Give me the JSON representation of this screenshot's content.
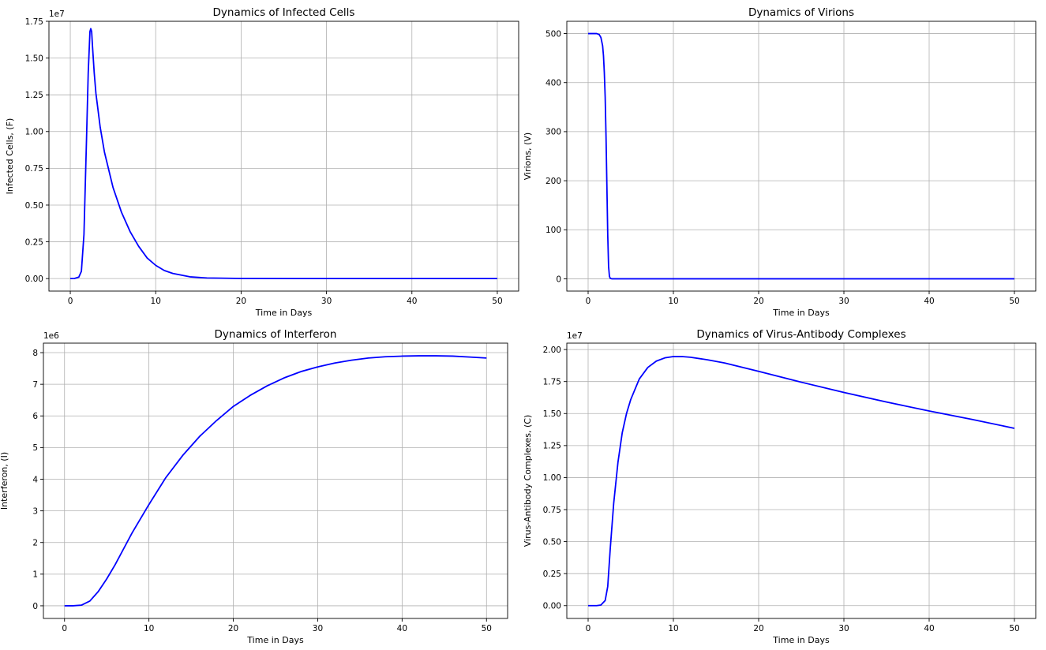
{
  "chart_data": [
    {
      "type": "line",
      "title": "Dynamics of Infected Cells",
      "xlabel": "Time in Days",
      "ylabel": "Infected Cells, (F)",
      "offset_text": "1e7",
      "scale": 10000000,
      "xlim": [
        -2.5,
        52.5
      ],
      "ylim": [
        -0.085,
        1.75
      ],
      "xticks": [
        0,
        10,
        20,
        30,
        40,
        50
      ],
      "yticks": [
        0,
        0.25,
        0.5,
        0.75,
        1.0,
        1.25,
        1.5,
        1.75
      ],
      "ytick_labels": [
        "0.00",
        "0.25",
        "0.50",
        "0.75",
        "1.00",
        "1.25",
        "1.50",
        "1.75"
      ],
      "color": "#0000ff",
      "series": [
        {
          "x": [
            0,
            0.5,
            1.0,
            1.3,
            1.6,
            1.9,
            2.1,
            2.3,
            2.4,
            2.5,
            2.6,
            2.8,
            3.0,
            3.5,
            4.0,
            5.0,
            6.0,
            7.0,
            8.0,
            9.0,
            10.0,
            11.0,
            12.0,
            14.0,
            16.0,
            20.0,
            30.0,
            40.0,
            50.0
          ],
          "y": [
            0,
            0.001,
            0.01,
            0.05,
            0.3,
            0.95,
            1.4,
            1.68,
            1.7,
            1.68,
            1.58,
            1.4,
            1.26,
            1.03,
            0.86,
            0.62,
            0.45,
            0.32,
            0.22,
            0.14,
            0.09,
            0.055,
            0.035,
            0.012,
            0.004,
            0.001,
            0,
            0,
            0
          ]
        }
      ]
    },
    {
      "type": "line",
      "title": "Dynamics of Virions",
      "xlabel": "Time in Days",
      "ylabel": "Virions, (V)",
      "offset_text": "",
      "scale": 1,
      "xlim": [
        -2.5,
        52.5
      ],
      "ylim": [
        -25,
        525
      ],
      "xticks": [
        0,
        10,
        20,
        30,
        40,
        50
      ],
      "yticks": [
        0,
        100,
        200,
        300,
        400,
        500
      ],
      "ytick_labels": [
        "0",
        "100",
        "200",
        "300",
        "400",
        "500"
      ],
      "color": "#0000ff",
      "series": [
        {
          "x": [
            0,
            0.5,
            1.0,
            1.3,
            1.5,
            1.7,
            1.8,
            1.9,
            2.0,
            2.1,
            2.2,
            2.3,
            2.4,
            2.5,
            2.6,
            2.8,
            3.0,
            10,
            20,
            30,
            40,
            50
          ],
          "y": [
            500,
            500,
            500,
            498,
            492,
            475,
            455,
            420,
            370,
            290,
            190,
            90,
            25,
            5,
            1,
            0,
            0,
            0,
            0,
            0,
            0,
            0
          ]
        }
      ]
    },
    {
      "type": "line",
      "title": "Dynamics of Interferon",
      "xlabel": "Time in Days",
      "ylabel": "Interferon, (I)",
      "offset_text": "1e6",
      "scale": 1000000,
      "xlim": [
        -2.5,
        52.5
      ],
      "ylim": [
        -0.4,
        8.3
      ],
      "xticks": [
        0,
        10,
        20,
        30,
        40,
        50
      ],
      "yticks": [
        0,
        1,
        2,
        3,
        4,
        5,
        6,
        7,
        8
      ],
      "ytick_labels": [
        "0",
        "1",
        "2",
        "3",
        "4",
        "5",
        "6",
        "7",
        "8"
      ],
      "color": "#0000ff",
      "series": [
        {
          "x": [
            0,
            1,
            2,
            3,
            4,
            5,
            6,
            7,
            8,
            10,
            12,
            14,
            16,
            18,
            20,
            22,
            24,
            26,
            28,
            30,
            32,
            34,
            36,
            38,
            40,
            42,
            44,
            46,
            48,
            50
          ],
          "y": [
            0,
            0,
            0.02,
            0.15,
            0.45,
            0.85,
            1.3,
            1.8,
            2.3,
            3.2,
            4.05,
            4.75,
            5.35,
            5.85,
            6.3,
            6.65,
            6.95,
            7.2,
            7.4,
            7.55,
            7.67,
            7.76,
            7.83,
            7.87,
            7.89,
            7.9,
            7.9,
            7.89,
            7.86,
            7.83
          ]
        }
      ]
    },
    {
      "type": "line",
      "title": "Dynamics of Virus-Antibody Complexes",
      "xlabel": "Time in Days",
      "ylabel": "Virus-Antibody Complexes, (C)",
      "offset_text": "1e7",
      "scale": 10000000,
      "xlim": [
        -2.5,
        52.5
      ],
      "ylim": [
        -0.1,
        2.05
      ],
      "xticks": [
        0,
        10,
        20,
        30,
        40,
        50
      ],
      "yticks": [
        0,
        0.25,
        0.5,
        0.75,
        1.0,
        1.25,
        1.5,
        1.75,
        2.0
      ],
      "ytick_labels": [
        "0.00",
        "0.25",
        "0.50",
        "0.75",
        "1.00",
        "1.25",
        "1.50",
        "1.75",
        "2.00"
      ],
      "color": "#0000ff",
      "series": [
        {
          "x": [
            0,
            1,
            1.5,
            2.0,
            2.3,
            2.6,
            3.0,
            3.5,
            4.0,
            4.5,
            5.0,
            6.0,
            7.0,
            8.0,
            9.0,
            10.0,
            11.0,
            12.0,
            14.0,
            16.0,
            20.0,
            25.0,
            30.0,
            35.0,
            40.0,
            45.0,
            50.0
          ],
          "y": [
            0,
            0,
            0.005,
            0.04,
            0.15,
            0.45,
            0.8,
            1.12,
            1.35,
            1.5,
            1.61,
            1.77,
            1.86,
            1.91,
            1.935,
            1.945,
            1.945,
            1.94,
            1.92,
            1.895,
            1.83,
            1.745,
            1.665,
            1.59,
            1.52,
            1.455,
            1.385
          ]
        }
      ]
    }
  ]
}
